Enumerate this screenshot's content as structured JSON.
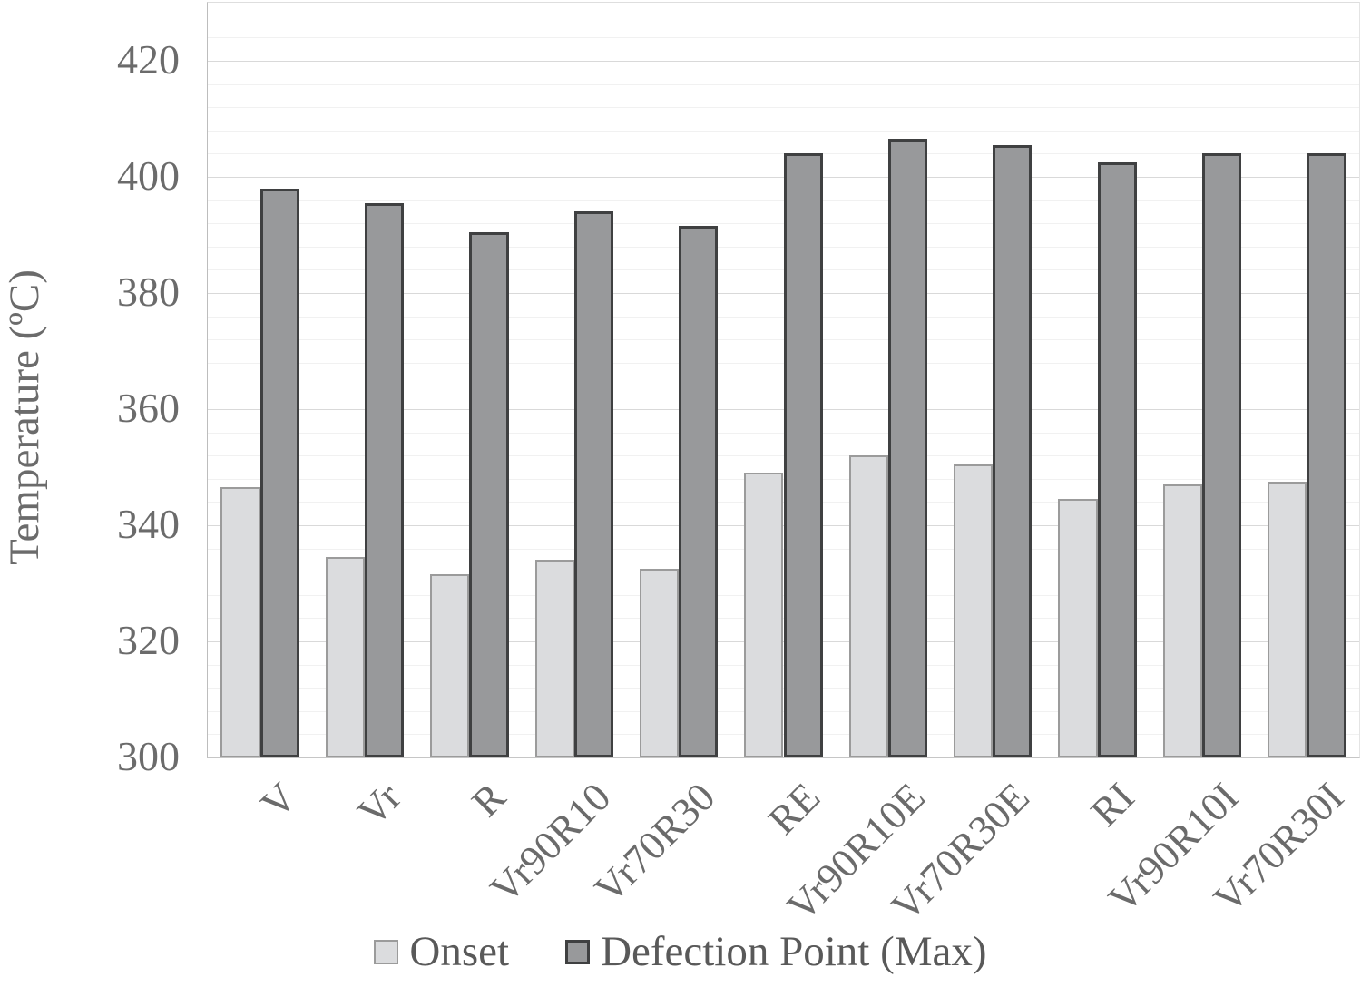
{
  "chart_data": {
    "type": "bar",
    "title": "",
    "xlabel": "",
    "ylabel": "Temperature (ºC)",
    "ylim": [
      300,
      430
    ],
    "yticks": [
      300,
      320,
      340,
      360,
      380,
      400,
      420
    ],
    "major_unit": 20,
    "minor_unit": 4,
    "grid": "horizontal major and minor gridlines on",
    "legend_position": "bottom-center",
    "categories": [
      "V",
      "Vr",
      "R",
      "Vr90R10",
      "Vr70R30",
      "RE",
      "Vr90R10E",
      "Vr70R30E",
      "RI",
      "Vr90R10I",
      "Vr70R30I"
    ],
    "series": [
      {
        "name": "Onset",
        "fill_color": "#dbdcde",
        "border_color": "#9b9b9b",
        "values": [
          346.5,
          334.5,
          331.5,
          334,
          332.5,
          349,
          352,
          350.5,
          344.5,
          347,
          347.5
        ]
      },
      {
        "name": "Defection Point (Max)",
        "fill_color": "#98999b",
        "border_color": "#3f4041",
        "values": [
          398,
          395.5,
          390.5,
          394,
          391.5,
          404,
          406.5,
          405.5,
          402.5,
          404,
          404
        ]
      }
    ],
    "colors": {
      "text": "#6b6b6b",
      "legend_text": "#595959",
      "grid_major": "#d9d9d9",
      "grid_minor": "#f1f1f1",
      "axis_line": "#bdbdbd",
      "background": "#ffffff"
    }
  }
}
